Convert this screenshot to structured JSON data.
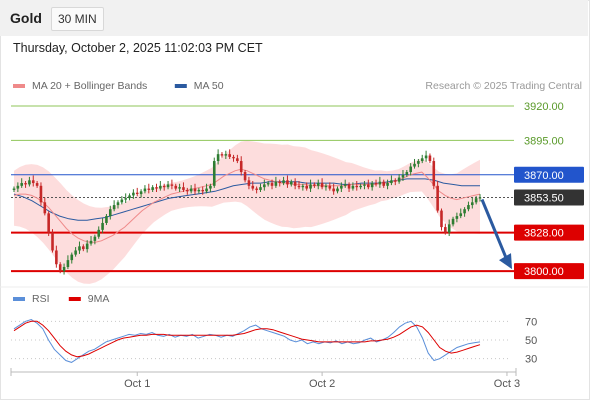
{
  "header": {
    "symbol": "Gold",
    "interval": "30 MIN",
    "timestamp": "Thursday, October 2, 2025 11:02:03 PM CET"
  },
  "colors": {
    "up": "#2e7d32",
    "down": "#c62828",
    "ma20": "#ef8a8a",
    "band": "#fcd5d5",
    "ma50": "#2b5aa0",
    "resistance": "#8fc65a",
    "pivot": "#2255cc",
    "support": "#dd0000",
    "current": "#333333",
    "arrow": "#2b5aa0",
    "rsi": "#5b8fd9",
    "rsi_ma": "#dd0000"
  },
  "chart_data": [
    {
      "type": "candlestick",
      "legend": [
        {
          "label": "MA 20 + Bollinger Bands",
          "color": "#ef8a8a"
        },
        {
          "label": "MA 50",
          "color": "#2b5aa0"
        }
      ],
      "legend_position": "top-left",
      "watermark": "Research © 2025 Trading Central",
      "ylim": [
        3795,
        3928
      ],
      "x_ticks": [
        {
          "label": "Oct 1",
          "index": 32
        },
        {
          "label": "Oct 2",
          "index": 80
        },
        {
          "label": "Oct 3",
          "index": 128
        }
      ],
      "levels": [
        {
          "value": 3920.0,
          "label": "3920.00",
          "kind": "resistance"
        },
        {
          "value": 3895.0,
          "label": "3895.00",
          "kind": "resistance"
        },
        {
          "value": 3870.0,
          "label": "3870.00",
          "kind": "pivot"
        },
        {
          "value": 3853.5,
          "label": "3853.50",
          "kind": "current"
        },
        {
          "value": 3828.0,
          "label": "3828.00",
          "kind": "support"
        },
        {
          "value": 3800.0,
          "label": "3800.00",
          "kind": "support"
        }
      ],
      "closes": [
        3860,
        3862,
        3864,
        3863,
        3866,
        3864,
        3862,
        3850,
        3842,
        3828,
        3815,
        3805,
        3800,
        3803,
        3808,
        3812,
        3815,
        3818,
        3816,
        3820,
        3822,
        3825,
        3830,
        3835,
        3840,
        3845,
        3848,
        3850,
        3852,
        3853,
        3855,
        3857,
        3856,
        3858,
        3860,
        3859,
        3861,
        3860,
        3862,
        3861,
        3863,
        3862,
        3860,
        3861,
        3859,
        3858,
        3860,
        3858,
        3859,
        3858,
        3860,
        3862,
        3880,
        3885,
        3884,
        3885,
        3883,
        3882,
        3880,
        3872,
        3866,
        3862,
        3860,
        3859,
        3861,
        3863,
        3864,
        3862,
        3865,
        3864,
        3866,
        3863,
        3865,
        3862,
        3861,
        3862,
        3860,
        3863,
        3862,
        3864,
        3861,
        3862,
        3860,
        3858,
        3860,
        3862,
        3863,
        3860,
        3862,
        3861,
        3862,
        3863,
        3861,
        3864,
        3863,
        3865,
        3862,
        3864,
        3866,
        3865,
        3868,
        3870,
        3872,
        3876,
        3878,
        3880,
        3882,
        3884,
        3880,
        3862,
        3844,
        3832,
        3828,
        3834,
        3838,
        3840,
        3842,
        3845,
        3848,
        3850,
        3853,
        3853.5
      ],
      "ma20_start": 3855,
      "ma20": [
        3855,
        3856,
        3856,
        3855,
        3853,
        3850,
        3846,
        3841,
        3836,
        3831,
        3827,
        3824,
        3822,
        3821,
        3821,
        3822,
        3824,
        3826,
        3829,
        3832,
        3836,
        3840,
        3844,
        3847,
        3850,
        3852,
        3854,
        3856,
        3857,
        3858,
        3859,
        3860,
        3861,
        3862,
        3863,
        3866,
        3869,
        3871,
        3873,
        3874,
        3873,
        3871,
        3869,
        3867,
        3866,
        3865,
        3864,
        3864,
        3863,
        3863,
        3863,
        3862,
        3862,
        3862,
        3862,
        3862,
        3862,
        3862,
        3863,
        3863,
        3863,
        3863,
        3863,
        3864,
        3864,
        3865,
        3866,
        3868,
        3870,
        3871,
        3872,
        3868,
        3863,
        3858,
        3855,
        3853,
        3852,
        3853,
        3854,
        3855,
        3856
      ],
      "ma20_from_index": 40,
      "ma50_from_index": 0,
      "ma50": [
        3856,
        3854,
        3851,
        3847,
        3843,
        3840,
        3838,
        3837,
        3837,
        3838,
        3839,
        3841,
        3843,
        3845,
        3847,
        3849,
        3851,
        3853,
        3854,
        3855,
        3856,
        3857,
        3858,
        3860,
        3862,
        3863,
        3864,
        3864,
        3865,
        3865,
        3865,
        3865,
        3864,
        3864,
        3864,
        3864,
        3863,
        3863,
        3864,
        3864,
        3864,
        3865,
        3866,
        3867,
        3867,
        3867,
        3866,
        3864,
        3863,
        3862,
        3862,
        3862
      ]
    },
    {
      "type": "line",
      "legend": [
        {
          "label": "RSI",
          "color": "#5b8fd9"
        },
        {
          "label": "9MA",
          "color": "#dd0000"
        }
      ],
      "legend_position": "top-left",
      "ylim": [
        20,
        80
      ],
      "y_ticks": [
        {
          "value": 70,
          "label": "70"
        },
        {
          "value": 50,
          "label": "50"
        },
        {
          "value": 30,
          "label": "30"
        }
      ],
      "rsi": [
        62,
        66,
        70,
        72,
        68,
        62,
        50,
        40,
        34,
        28,
        26,
        30,
        34,
        38,
        40,
        44,
        48,
        50,
        52,
        54,
        56,
        55,
        57,
        56,
        58,
        55,
        54,
        56,
        53,
        55,
        54,
        56,
        52,
        54,
        56,
        55,
        53,
        55,
        54,
        57,
        60,
        64,
        66,
        62,
        60,
        58,
        56,
        54,
        50,
        48,
        50,
        46,
        48,
        46,
        48,
        47,
        49,
        46,
        48,
        46,
        47,
        50,
        52,
        48,
        50,
        53,
        58,
        64,
        68,
        70,
        64,
        52,
        36,
        28,
        30,
        34,
        38,
        42,
        44,
        46,
        47,
        48
      ],
      "rsi_ma": [
        60,
        64,
        68,
        70,
        70,
        66,
        60,
        52,
        44,
        38,
        34,
        32,
        33,
        35,
        38,
        41,
        44,
        47,
        50,
        52,
        53,
        54,
        55,
        55,
        56,
        56,
        56,
        55,
        55,
        55,
        55,
        55,
        55,
        55,
        55,
        55,
        55,
        55,
        55,
        56,
        57,
        59,
        61,
        62,
        62,
        61,
        59,
        57,
        55,
        53,
        51,
        50,
        49,
        48,
        48,
        48,
        48,
        48,
        48,
        48,
        48,
        48,
        49,
        49,
        50,
        51,
        53,
        56,
        60,
        64,
        66,
        64,
        58,
        50,
        42,
        38,
        36,
        37,
        39,
        41,
        43,
        45
      ]
    }
  ]
}
